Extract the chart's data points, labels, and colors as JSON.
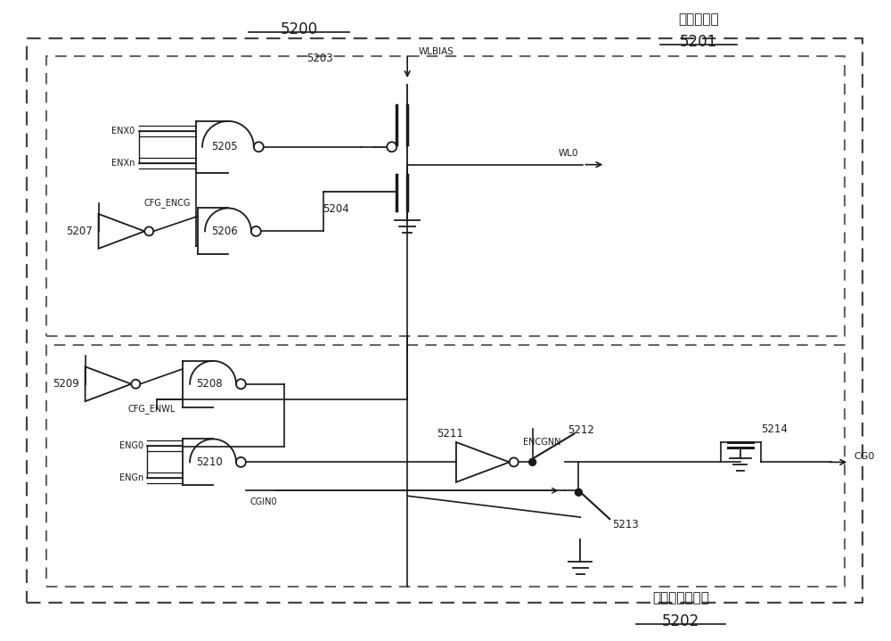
{
  "title_main": "5200",
  "title_wl_decoder": "字线解码器",
  "title_wl_num": "5201",
  "title_cg_decoder": "控制栅极解码器",
  "title_cg_num": "5202",
  "bg_color": "#ffffff",
  "line_color": "#1a1a1a",
  "labels": {
    "ENX0": "ENX0",
    "ENXn": "ENXn",
    "CFG_ENCG": "CFG_ENCG",
    "WLBIAS": "WLBIAS",
    "WL0": "WL0",
    "CFG_ENWL": "CFG_ENWL",
    "ENG0": "ENG0",
    "ENGn": "ENGn",
    "ENCGNN": "ENCGNN",
    "CGIN0": "CGIN0",
    "CG0": "CG0",
    "n5203": "5203",
    "n5204": "5204",
    "n5205": "5205",
    "n5206": "5206",
    "n5207": "5207",
    "n5208": "5208",
    "n5209": "5209",
    "n5210": "5210",
    "n5211": "5211",
    "n5212": "5212",
    "n5213": "5213",
    "n5214": "5214"
  }
}
